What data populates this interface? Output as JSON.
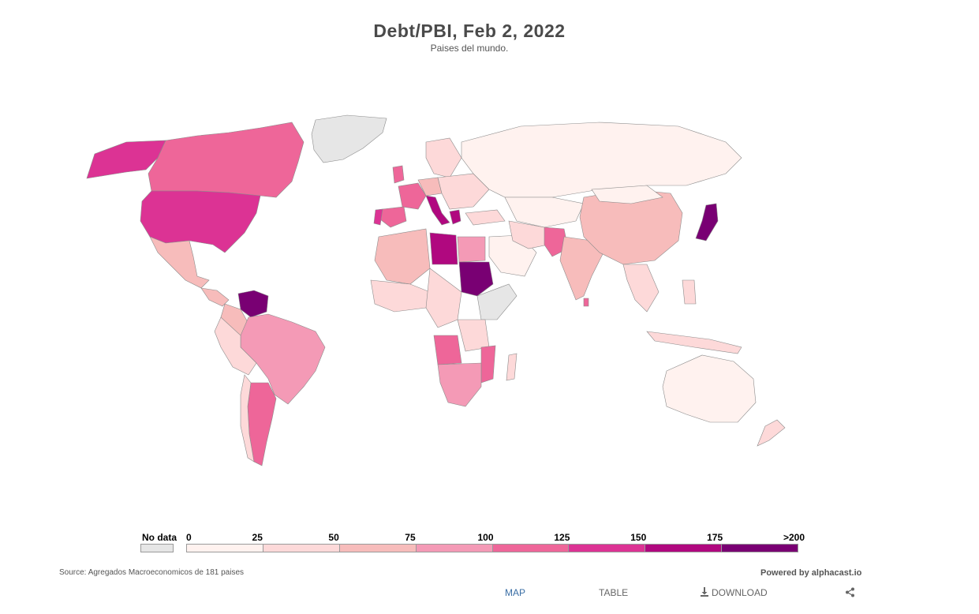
{
  "header": {
    "title": "Debt/PBI, Feb 2, 2022",
    "subtitle": "Paises del mundo."
  },
  "legend": {
    "no_data_label": "No data",
    "no_data_color": "#e6e6e6",
    "ticks": [
      "0",
      "25",
      "50",
      "75",
      "100",
      "125",
      "150",
      "175",
      ">200"
    ],
    "colors": [
      "#fff2ef",
      "#fdd9d9",
      "#f7bcbb",
      "#f49ab6",
      "#ee6699",
      "#dc3394",
      "#b0087f",
      "#790073"
    ]
  },
  "footer": {
    "source": "Source: Agregados Macroeconomicos de 181 paises",
    "powered_by": "Powered by alphacast.io",
    "tabs": {
      "map": "MAP",
      "table": "TABLE",
      "download": "DOWNLOAD"
    }
  },
  "icons": {
    "download": "download-icon",
    "share": "share-icon"
  }
}
